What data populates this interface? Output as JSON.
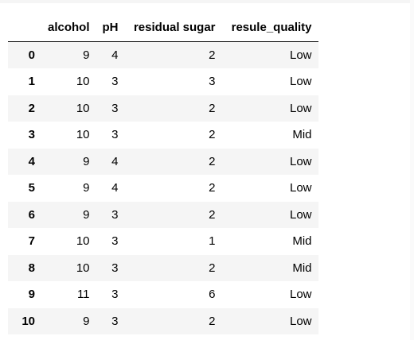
{
  "table": {
    "index_header": "",
    "columns": [
      "alcohol",
      "pH",
      "residual sugar",
      "resule_quality"
    ],
    "rows": [
      {
        "index": "0",
        "alcohol": "9",
        "pH": "4",
        "residual_sugar": "2",
        "resule_quality": "Low"
      },
      {
        "index": "1",
        "alcohol": "10",
        "pH": "3",
        "residual_sugar": "3",
        "resule_quality": "Low"
      },
      {
        "index": "2",
        "alcohol": "10",
        "pH": "3",
        "residual_sugar": "2",
        "resule_quality": "Low"
      },
      {
        "index": "3",
        "alcohol": "10",
        "pH": "3",
        "residual_sugar": "2",
        "resule_quality": "Mid"
      },
      {
        "index": "4",
        "alcohol": "9",
        "pH": "4",
        "residual_sugar": "2",
        "resule_quality": "Low"
      },
      {
        "index": "5",
        "alcohol": "9",
        "pH": "4",
        "residual_sugar": "2",
        "resule_quality": "Low"
      },
      {
        "index": "6",
        "alcohol": "9",
        "pH": "3",
        "residual_sugar": "2",
        "resule_quality": "Low"
      },
      {
        "index": "7",
        "alcohol": "10",
        "pH": "3",
        "residual_sugar": "1",
        "resule_quality": "Mid"
      },
      {
        "index": "8",
        "alcohol": "10",
        "pH": "3",
        "residual_sugar": "2",
        "resule_quality": "Mid"
      },
      {
        "index": "9",
        "alcohol": "11",
        "pH": "3",
        "residual_sugar": "6",
        "resule_quality": "Low"
      },
      {
        "index": "10",
        "alcohol": "9",
        "pH": "3",
        "residual_sugar": "2",
        "resule_quality": "Low"
      }
    ]
  },
  "colors": {
    "stripe": "#f5f5f5",
    "header_rule": "#000000",
    "text": "#000000"
  }
}
